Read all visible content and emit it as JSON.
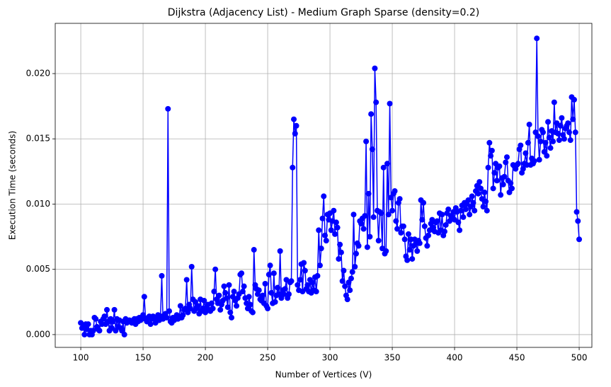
{
  "chart_data": {
    "type": "line",
    "title": "Dijkstra (Adjacency List) - Medium Graph Sparse (density=0.2)",
    "x_label": "Number of Vertices (V)",
    "y_label": "Execution Time (seconds)",
    "grid": true,
    "xlim": [
      79.5,
      510.2
    ],
    "ylim": [
      -0.00098,
      0.02385
    ],
    "xticks": [
      100,
      150,
      200,
      250,
      300,
      350,
      400,
      450,
      500
    ],
    "yticks": [
      {
        "value": 0,
        "label": "0.000"
      },
      {
        "value": 0.005,
        "label": "0.005"
      },
      {
        "value": 0.01,
        "label": "0.010"
      },
      {
        "value": 0.015,
        "label": "0.015"
      },
      {
        "value": 0.02,
        "label": "0.020"
      }
    ],
    "x": [
      100,
      101,
      102,
      103,
      104,
      105,
      106,
      107,
      108,
      109,
      110,
      111,
      112,
      113,
      114,
      115,
      116,
      117,
      118,
      119,
      120,
      121,
      122,
      123,
      124,
      125,
      126,
      127,
      128,
      129,
      130,
      131,
      132,
      133,
      134,
      135,
      136,
      137,
      138,
      139,
      140,
      141,
      142,
      143,
      144,
      145,
      146,
      147,
      148,
      149,
      150,
      151,
      152,
      153,
      154,
      155,
      156,
      157,
      158,
      159,
      160,
      161,
      162,
      163,
      164,
      165,
      166,
      167,
      168,
      169,
      170,
      171,
      172,
      173,
      174,
      175,
      176,
      177,
      178,
      179,
      180,
      181,
      182,
      183,
      184,
      185,
      186,
      187,
      188,
      189,
      190,
      191,
      192,
      193,
      194,
      195,
      196,
      197,
      198,
      199,
      200,
      201,
      202,
      203,
      204,
      205,
      206,
      207,
      208,
      209,
      210,
      211,
      212,
      213,
      214,
      215,
      216,
      217,
      218,
      219,
      220,
      221,
      222,
      223,
      224,
      225,
      226,
      227,
      228,
      229,
      230,
      231,
      232,
      233,
      234,
      235,
      236,
      237,
      238,
      239,
      240,
      241,
      242,
      243,
      244,
      245,
      246,
      247,
      248,
      249,
      250,
      251,
      252,
      253,
      254,
      255,
      256,
      257,
      258,
      259,
      260,
      261,
      262,
      263,
      264,
      265,
      266,
      267,
      268,
      269,
      270,
      271,
      272,
      273,
      274,
      275,
      276,
      277,
      278,
      279,
      280,
      281,
      282,
      283,
      284,
      285,
      286,
      287,
      288,
      289,
      290,
      291,
      292,
      293,
      294,
      295,
      296,
      297,
      298,
      299,
      300,
      301,
      302,
      303,
      304,
      305,
      306,
      307,
      308,
      309,
      310,
      311,
      312,
      313,
      314,
      315,
      316,
      317,
      318,
      319,
      320,
      321,
      322,
      323,
      324,
      325,
      326,
      327,
      328,
      329,
      330,
      331,
      332,
      333,
      334,
      335,
      336,
      337,
      338,
      339,
      340,
      341,
      342,
      343,
      344,
      345,
      346,
      347,
      348,
      349,
      350,
      351,
      352,
      353,
      354,
      355,
      356,
      357,
      358,
      359,
      360,
      361,
      362,
      363,
      364,
      365,
      366,
      367,
      368,
      369,
      370,
      371,
      372,
      373,
      374,
      375,
      376,
      377,
      378,
      379,
      380,
      381,
      382,
      383,
      384,
      385,
      386,
      387,
      388,
      389,
      390,
      391,
      392,
      393,
      394,
      395,
      396,
      397,
      398,
      399,
      400,
      401,
      402,
      403,
      404,
      405,
      406,
      407,
      408,
      409,
      410,
      411,
      412,
      413,
      414,
      415,
      416,
      417,
      418,
      419,
      420,
      421,
      422,
      423,
      424,
      425,
      426,
      427,
      428,
      429,
      430,
      431,
      432,
      433,
      434,
      435,
      436,
      437,
      438,
      439,
      440,
      441,
      442,
      443,
      444,
      445,
      446,
      447,
      448,
      449,
      450,
      451,
      452,
      453,
      454,
      455,
      456,
      457,
      458,
      459,
      460,
      461,
      462,
      463,
      464,
      465,
      466,
      467,
      468,
      469,
      470,
      471,
      472,
      473,
      474,
      475,
      476,
      477,
      478,
      479,
      480,
      481,
      482,
      483,
      484,
      485,
      486,
      487,
      488,
      489,
      490,
      491,
      492,
      493,
      494,
      495,
      496,
      497,
      498,
      499,
      500
    ],
    "series": [
      {
        "color": "#0000ff",
        "values": [
          0.0009,
          0.0005,
          0.0007,
          0.0,
          0.0008,
          0.0004,
          0.0008,
          0.0,
          0.0003,
          0.0,
          0.0003,
          0.0013,
          0.0012,
          0.0006,
          0.0004,
          0.0003,
          0.001,
          0.0008,
          0.0012,
          0.0014,
          0.0008,
          0.0019,
          0.001,
          0.0003,
          0.0012,
          0.0005,
          0.001,
          0.0019,
          0.0003,
          0.0012,
          0.0006,
          0.0011,
          0.0005,
          0.0003,
          0.001,
          0.0,
          0.0012,
          0.0009,
          0.001,
          0.0011,
          0.001,
          0.0009,
          0.0011,
          0.0012,
          0.0008,
          0.0012,
          0.001,
          0.0013,
          0.0011,
          0.0012,
          0.0015,
          0.0029,
          0.0012,
          0.001,
          0.0013,
          0.0014,
          0.0008,
          0.0012,
          0.0014,
          0.0013,
          0.0009,
          0.0012,
          0.0015,
          0.0011,
          0.0014,
          0.0045,
          0.0012,
          0.0015,
          0.0016,
          0.0013,
          0.0173,
          0.0018,
          0.001,
          0.0009,
          0.0013,
          0.0011,
          0.0013,
          0.0015,
          0.0012,
          0.0014,
          0.0022,
          0.0013,
          0.0015,
          0.0019,
          0.002,
          0.0042,
          0.0017,
          0.0023,
          0.002,
          0.0052,
          0.0027,
          0.0018,
          0.0025,
          0.002,
          0.0022,
          0.0016,
          0.0027,
          0.0018,
          0.002,
          0.0026,
          0.0017,
          0.0021,
          0.0023,
          0.0019,
          0.0018,
          0.0024,
          0.002,
          0.0033,
          0.005,
          0.0027,
          0.0024,
          0.003,
          0.0019,
          0.0023,
          0.0026,
          0.0037,
          0.0032,
          0.0028,
          0.0021,
          0.0038,
          0.0017,
          0.0013,
          0.0029,
          0.0033,
          0.0026,
          0.0022,
          0.0028,
          0.0031,
          0.0046,
          0.0047,
          0.0033,
          0.0037,
          0.0028,
          0.0024,
          0.002,
          0.0029,
          0.0023,
          0.0018,
          0.0017,
          0.0065,
          0.0038,
          0.0035,
          0.0031,
          0.0034,
          0.0027,
          0.0026,
          0.003,
          0.0024,
          0.0039,
          0.0022,
          0.002,
          0.0046,
          0.0053,
          0.0032,
          0.0024,
          0.0047,
          0.0025,
          0.003,
          0.0036,
          0.0031,
          0.0064,
          0.0028,
          0.0034,
          0.0031,
          0.0035,
          0.0042,
          0.0028,
          0.0031,
          0.004,
          0.0041,
          0.0128,
          0.0165,
          0.0154,
          0.016,
          0.0038,
          0.0034,
          0.0042,
          0.0054,
          0.0033,
          0.0055,
          0.0049,
          0.0035,
          0.0038,
          0.0033,
          0.0042,
          0.0032,
          0.004,
          0.0034,
          0.0044,
          0.0033,
          0.0045,
          0.008,
          0.0053,
          0.0066,
          0.0089,
          0.0106,
          0.0076,
          0.0072,
          0.0092,
          0.0088,
          0.0093,
          0.008,
          0.0087,
          0.0095,
          0.0077,
          0.0086,
          0.0082,
          0.0058,
          0.0069,
          0.0063,
          0.0041,
          0.0049,
          0.0037,
          0.003,
          0.0027,
          0.004,
          0.0034,
          0.0043,
          0.0048,
          0.0092,
          0.0052,
          0.0062,
          0.007,
          0.0068,
          0.0087,
          0.0085,
          0.0089,
          0.0081,
          0.0091,
          0.0148,
          0.0067,
          0.0108,
          0.0075,
          0.0169,
          0.0142,
          0.009,
          0.0204,
          0.0178,
          0.0095,
          0.0072,
          0.0094,
          0.0093,
          0.0066,
          0.0128,
          0.0062,
          0.0064,
          0.0131,
          0.0092,
          0.0177,
          0.0105,
          0.0095,
          0.0108,
          0.011,
          0.0087,
          0.0081,
          0.0101,
          0.0104,
          0.0078,
          0.0083,
          0.0083,
          0.0073,
          0.006,
          0.0057,
          0.0077,
          0.0065,
          0.0073,
          0.0058,
          0.0068,
          0.0073,
          0.007,
          0.0064,
          0.0072,
          0.007,
          0.0103,
          0.0088,
          0.0101,
          0.0083,
          0.0074,
          0.0068,
          0.0076,
          0.008,
          0.0085,
          0.0088,
          0.0082,
          0.0079,
          0.0086,
          0.0087,
          0.0078,
          0.0093,
          0.008,
          0.0092,
          0.0076,
          0.0079,
          0.0084,
          0.0093,
          0.0096,
          0.0087,
          0.0091,
          0.0089,
          0.0094,
          0.0088,
          0.0097,
          0.0094,
          0.0086,
          0.008,
          0.0095,
          0.0099,
          0.009,
          0.0101,
          0.0096,
          0.01,
          0.0103,
          0.0092,
          0.0098,
          0.0106,
          0.0101,
          0.0095,
          0.011,
          0.0114,
          0.0108,
          0.0117,
          0.0112,
          0.0104,
          0.0098,
          0.0109,
          0.0102,
          0.0095,
          0.0128,
          0.0147,
          0.0137,
          0.0141,
          0.0112,
          0.0124,
          0.0131,
          0.0118,
          0.0128,
          0.0129,
          0.0107,
          0.012,
          0.0115,
          0.0121,
          0.0132,
          0.0136,
          0.0118,
          0.0109,
          0.0116,
          0.0112,
          0.013,
          0.0129,
          0.0127,
          0.013,
          0.0131,
          0.0142,
          0.0145,
          0.0124,
          0.0127,
          0.0131,
          0.0139,
          0.013,
          0.0147,
          0.0161,
          0.013,
          0.0135,
          0.0131,
          0.0133,
          0.0155,
          0.0227,
          0.0152,
          0.0134,
          0.0148,
          0.0157,
          0.0155,
          0.014,
          0.0147,
          0.0137,
          0.0163,
          0.0151,
          0.0143,
          0.0156,
          0.0148,
          0.0178,
          0.0155,
          0.0162,
          0.0154,
          0.0149,
          0.016,
          0.0166,
          0.0153,
          0.015,
          0.0158,
          0.016,
          0.0162,
          0.0155,
          0.0149,
          0.0182,
          0.0165,
          0.018,
          0.0155,
          0.0094,
          0.0087,
          0.0073
        ]
      }
    ]
  }
}
